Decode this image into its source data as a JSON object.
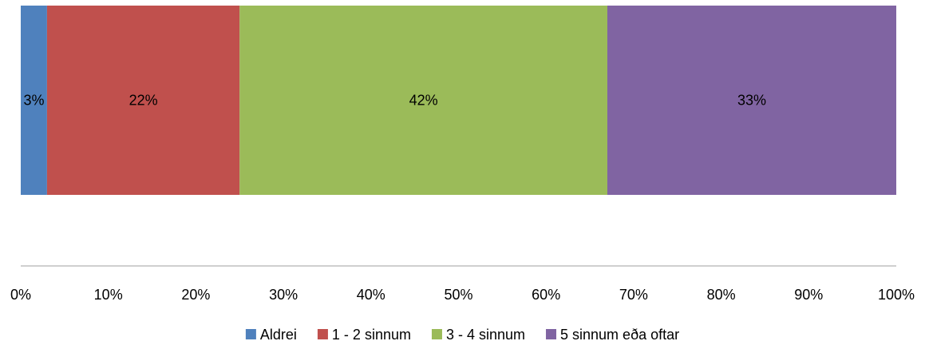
{
  "chart_data": {
    "type": "bar",
    "orientation": "horizontal",
    "stacked": true,
    "categories": [
      ""
    ],
    "series": [
      {
        "name": "Aldrei",
        "values": [
          3
        ],
        "label": "3%",
        "color": "#4F81BD"
      },
      {
        "name": "1 - 2 sinnum",
        "values": [
          22
        ],
        "label": "22%",
        "color": "#C0504D"
      },
      {
        "name": "3 - 4 sinnum",
        "values": [
          42
        ],
        "label": "42%",
        "color": "#9BBB59"
      },
      {
        "name": "5 sinnum eða oftar",
        "values": [
          33
        ],
        "label": "33%",
        "color": "#8064A2"
      }
    ],
    "xlim": [
      0,
      100
    ],
    "xticks": [
      "0%",
      "10%",
      "20%",
      "30%",
      "40%",
      "50%",
      "60%",
      "70%",
      "80%",
      "90%",
      "100%"
    ],
    "grid": false,
    "legend_position": "bottom",
    "title": "",
    "xlabel": "",
    "ylabel": ""
  }
}
